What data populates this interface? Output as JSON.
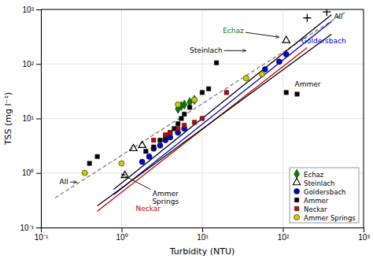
{
  "chart_data": {
    "type": "scatter",
    "x_label": "Turbidity (NTU)",
    "y_label": "TSS (mg l⁻¹)",
    "log": true,
    "xlim": [
      0.1,
      1000
    ],
    "ylim": [
      0.1,
      1000
    ],
    "xticks": [
      {
        "value": 0.1,
        "label": "10⁻¹"
      },
      {
        "value": 1,
        "label": "10⁰"
      },
      {
        "value": 10,
        "label": "10¹"
      },
      {
        "value": 100,
        "label": "10²"
      },
      {
        "value": 1000,
        "label": "10³"
      }
    ],
    "yticks": [
      {
        "value": 0.1,
        "label": "10⁻¹"
      },
      {
        "value": 1,
        "label": "10⁰"
      },
      {
        "value": 10,
        "label": "10¹"
      },
      {
        "value": 100,
        "label": "10²"
      },
      {
        "value": 1000,
        "label": "10³"
      }
    ],
    "grid": true,
    "legend": "lower right",
    "series": [
      {
        "type": "line",
        "x": [
          0.15,
          600.0
        ],
        "values": [
          0.35,
          900.0
        ],
        "color": "gray",
        "line_style": "dashed"
      },
      {
        "type": "line",
        "x": [
          0.8,
          400.0
        ],
        "values": [
          0.5,
          800.0
        ],
        "color": "#000000",
        "line_style": "solid"
      },
      {
        "type": "line",
        "x": [
          0.8,
          400.0
        ],
        "values": [
          0.4,
          600.0
        ],
        "color": "#0000cc",
        "line_style": "solid"
      },
      {
        "type": "line",
        "x": [
          0.5,
          200.0
        ],
        "values": [
          0.2,
          200.0
        ],
        "color": "#cc0000",
        "line_style": "solid"
      },
      {
        "type": "line",
        "x": [
          0.5,
          400.0
        ],
        "values": [
          0.25,
          350.0
        ],
        "color": "#000000",
        "line_style": "solid"
      },
      {
        "type": "scatter",
        "name": "Echaz",
        "marker": "diamond",
        "color": "#008000",
        "x": [
          5.0,
          5.5,
          6.0,
          7.0,
          8.0
        ],
        "values": [
          15.0,
          17.0,
          18.0,
          20.0,
          22.0
        ]
      },
      {
        "type": "scatter",
        "name": "Steinlach",
        "marker": "triangle-open",
        "color": "#000000",
        "x": [
          1.1,
          1.4,
          1.8,
          110.0
        ],
        "values": [
          0.9,
          2.8,
          3.2,
          270.0
        ]
      },
      {
        "type": "scatter",
        "name": "Goldersbach",
        "marker": "circle",
        "color": "#0000cc",
        "x": [
          1.8,
          2.2,
          2.5,
          3.0,
          3.5,
          4.0,
          5.0,
          6.0,
          60.0,
          90.0,
          110.0
        ],
        "values": [
          1.6,
          2.0,
          2.8,
          3.2,
          4.0,
          4.5,
          5.5,
          6.5,
          80.0,
          110.0,
          150.0
        ]
      },
      {
        "type": "scatter",
        "name": "Ammer",
        "marker": "square",
        "color": "#000000",
        "x": [
          0.4,
          0.5,
          2.0,
          2.5,
          3.0,
          3.5,
          4.0,
          4.5,
          5.0,
          5.5,
          6.0,
          7.0,
          8.0,
          10.0,
          12.0,
          15.0,
          110.0,
          150.0
        ],
        "values": [
          1.5,
          2.0,
          2.5,
          3.0,
          4.0,
          4.5,
          5.5,
          6.5,
          8.0,
          10.0,
          12.0,
          16.0,
          22.0,
          30.0,
          35.0,
          105.0,
          30.0,
          28.0
        ]
      },
      {
        "type": "scatter",
        "name": "Neckar",
        "marker": "square",
        "color": "#cc0000",
        "x": [
          2.5,
          3.5,
          4.0,
          5.0,
          6.0,
          8.0,
          10.0,
          20.0
        ],
        "values": [
          4.0,
          5.0,
          5.5,
          6.5,
          7.5,
          8.5,
          10.0,
          30.0
        ]
      },
      {
        "type": "scatter",
        "name": "Ammer Springs",
        "marker": "circle",
        "color": "#cccc00",
        "x": [
          0.35,
          1.0,
          5.0,
          8.0,
          35.0,
          55.0
        ],
        "values": [
          1.0,
          1.5,
          18.0,
          22.0,
          55.0,
          65.0
        ]
      },
      {
        "type": "scatter",
        "marker": "plus",
        "color": "#000000",
        "x": [
          200.0,
          350.0
        ],
        "values": [
          700.0,
          900.0
        ]
      }
    ],
    "annotations": [
      {
        "text": "Echaz",
        "x": 18,
        "y": 370,
        "arrow_x": 90,
        "arrow_y": 310,
        "color": "#008000"
      },
      {
        "text": "Steinlach",
        "x": 7,
        "y": 160,
        "arrow_x": 35,
        "arrow_y": 175,
        "color": "#000000"
      },
      {
        "text": "Goldersbach",
        "x": 170,
        "y": 240,
        "color": "#0000cc"
      },
      {
        "text": "Ammer",
        "x": 140,
        "y": 38,
        "color": "#000000"
      },
      {
        "text": "All",
        "x": 430,
        "y": 680,
        "color": "#000000"
      },
      {
        "text": "All",
        "x": 0.17,
        "y": 0.62,
        "arrow_x": 0.28,
        "arrow_y": 0.68,
        "color": "#000000"
      },
      {
        "text": "Ammer\nSprings",
        "x": 3.5,
        "y": 0.38,
        "arrow_x": 1.0,
        "arrow_y": 0.95,
        "color": "#000000"
      },
      {
        "text": "Neckar",
        "x": 1.5,
        "y": 0.2,
        "color": "#cc0000"
      }
    ]
  }
}
